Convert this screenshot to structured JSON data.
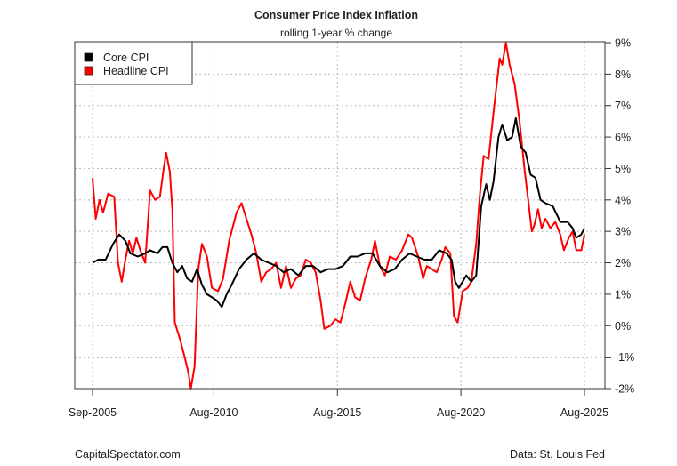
{
  "chart_data": {
    "type": "line",
    "title": "Consumer Price Index Inflation",
    "subtitle": "rolling 1-year % change",
    "xlabel": "",
    "ylabel": "",
    "x_range": [
      2005.67,
      2025.58
    ],
    "ylim": [
      -2,
      9
    ],
    "grid": true,
    "legend_position": "top-left",
    "y_axis_side": "right",
    "y_ticks": [
      -2,
      -1,
      0,
      1,
      2,
      3,
      4,
      5,
      6,
      7,
      8,
      9
    ],
    "y_tick_labels": [
      "-2%",
      "-1%",
      "0%",
      "1%",
      "2%",
      "3%",
      "4%",
      "5%",
      "6%",
      "7%",
      "8%",
      "9%"
    ],
    "x_ticks": [
      2005.67,
      2010.58,
      2015.58,
      2020.58,
      2025.58
    ],
    "x_tick_labels": [
      "Sep-2005",
      "Aug-2010",
      "Aug-2015",
      "Aug-2020",
      "Aug-2025"
    ],
    "series": [
      {
        "name": "Core CPI",
        "color": "#000000",
        "points": [
          [
            2005.67,
            2.0
          ],
          [
            2005.9,
            2.1
          ],
          [
            2006.2,
            2.1
          ],
          [
            2006.5,
            2.6
          ],
          [
            2006.75,
            2.9
          ],
          [
            2007.0,
            2.7
          ],
          [
            2007.2,
            2.3
          ],
          [
            2007.5,
            2.2
          ],
          [
            2007.8,
            2.3
          ],
          [
            2008.0,
            2.4
          ],
          [
            2008.3,
            2.3
          ],
          [
            2008.5,
            2.5
          ],
          [
            2008.7,
            2.5
          ],
          [
            2008.9,
            2.0
          ],
          [
            2009.1,
            1.7
          ],
          [
            2009.3,
            1.9
          ],
          [
            2009.5,
            1.5
          ],
          [
            2009.7,
            1.4
          ],
          [
            2009.9,
            1.8
          ],
          [
            2010.1,
            1.3
          ],
          [
            2010.3,
            1.0
          ],
          [
            2010.5,
            0.9
          ],
          [
            2010.7,
            0.8
          ],
          [
            2010.9,
            0.6
          ],
          [
            2011.1,
            1.0
          ],
          [
            2011.3,
            1.3
          ],
          [
            2011.6,
            1.8
          ],
          [
            2011.9,
            2.1
          ],
          [
            2012.2,
            2.3
          ],
          [
            2012.5,
            2.1
          ],
          [
            2012.8,
            2.0
          ],
          [
            2013.1,
            1.9
          ],
          [
            2013.4,
            1.7
          ],
          [
            2013.7,
            1.8
          ],
          [
            2014.0,
            1.6
          ],
          [
            2014.3,
            1.9
          ],
          [
            2014.6,
            1.9
          ],
          [
            2014.9,
            1.7
          ],
          [
            2015.2,
            1.8
          ],
          [
            2015.5,
            1.8
          ],
          [
            2015.8,
            1.9
          ],
          [
            2016.1,
            2.2
          ],
          [
            2016.4,
            2.2
          ],
          [
            2016.7,
            2.3
          ],
          [
            2017.0,
            2.3
          ],
          [
            2017.3,
            1.9
          ],
          [
            2017.6,
            1.7
          ],
          [
            2017.9,
            1.8
          ],
          [
            2018.2,
            2.1
          ],
          [
            2018.5,
            2.3
          ],
          [
            2018.8,
            2.2
          ],
          [
            2019.1,
            2.1
          ],
          [
            2019.4,
            2.1
          ],
          [
            2019.7,
            2.4
          ],
          [
            2020.0,
            2.3
          ],
          [
            2020.2,
            2.1
          ],
          [
            2020.35,
            1.4
          ],
          [
            2020.5,
            1.2
          ],
          [
            2020.8,
            1.6
          ],
          [
            2021.0,
            1.4
          ],
          [
            2021.2,
            1.6
          ],
          [
            2021.4,
            3.8
          ],
          [
            2021.6,
            4.5
          ],
          [
            2021.75,
            4.0
          ],
          [
            2021.9,
            4.6
          ],
          [
            2022.1,
            6.0
          ],
          [
            2022.25,
            6.4
          ],
          [
            2022.45,
            5.9
          ],
          [
            2022.65,
            6.0
          ],
          [
            2022.8,
            6.6
          ],
          [
            2023.0,
            5.7
          ],
          [
            2023.2,
            5.5
          ],
          [
            2023.4,
            4.8
          ],
          [
            2023.6,
            4.7
          ],
          [
            2023.8,
            4.0
          ],
          [
            2024.0,
            3.9
          ],
          [
            2024.3,
            3.8
          ],
          [
            2024.6,
            3.3
          ],
          [
            2024.9,
            3.3
          ],
          [
            2025.1,
            3.1
          ],
          [
            2025.25,
            2.8
          ],
          [
            2025.45,
            2.9
          ],
          [
            2025.58,
            3.1
          ]
        ]
      },
      {
        "name": "Headline CPI",
        "color": "#ff0000",
        "points": [
          [
            2005.67,
            4.7
          ],
          [
            2005.8,
            3.4
          ],
          [
            2005.95,
            4.0
          ],
          [
            2006.1,
            3.6
          ],
          [
            2006.3,
            4.2
          ],
          [
            2006.55,
            4.1
          ],
          [
            2006.7,
            2.0
          ],
          [
            2006.85,
            1.4
          ],
          [
            2007.0,
            2.1
          ],
          [
            2007.15,
            2.7
          ],
          [
            2007.3,
            2.3
          ],
          [
            2007.45,
            2.8
          ],
          [
            2007.6,
            2.4
          ],
          [
            2007.8,
            2.0
          ],
          [
            2008.0,
            4.3
          ],
          [
            2008.2,
            4.0
          ],
          [
            2008.4,
            4.1
          ],
          [
            2008.55,
            5.0
          ],
          [
            2008.65,
            5.5
          ],
          [
            2008.8,
            4.9
          ],
          [
            2008.9,
            3.7
          ],
          [
            2009.0,
            0.1
          ],
          [
            2009.2,
            -0.4
          ],
          [
            2009.4,
            -1.0
          ],
          [
            2009.55,
            -1.5
          ],
          [
            2009.65,
            -2.0
          ],
          [
            2009.8,
            -1.3
          ],
          [
            2009.95,
            1.8
          ],
          [
            2010.1,
            2.6
          ],
          [
            2010.3,
            2.2
          ],
          [
            2010.5,
            1.2
          ],
          [
            2010.75,
            1.1
          ],
          [
            2010.95,
            1.5
          ],
          [
            2011.2,
            2.7
          ],
          [
            2011.5,
            3.6
          ],
          [
            2011.7,
            3.9
          ],
          [
            2011.9,
            3.4
          ],
          [
            2012.1,
            2.9
          ],
          [
            2012.3,
            2.3
          ],
          [
            2012.5,
            1.4
          ],
          [
            2012.7,
            1.7
          ],
          [
            2012.9,
            1.8
          ],
          [
            2013.1,
            2.0
          ],
          [
            2013.3,
            1.2
          ],
          [
            2013.5,
            1.9
          ],
          [
            2013.7,
            1.2
          ],
          [
            2013.9,
            1.5
          ],
          [
            2014.1,
            1.6
          ],
          [
            2014.3,
            2.1
          ],
          [
            2014.5,
            2.0
          ],
          [
            2014.7,
            1.7
          ],
          [
            2014.9,
            0.8
          ],
          [
            2015.05,
            -0.1
          ],
          [
            2015.3,
            0.0
          ],
          [
            2015.5,
            0.2
          ],
          [
            2015.7,
            0.1
          ],
          [
            2015.9,
            0.7
          ],
          [
            2016.1,
            1.4
          ],
          [
            2016.3,
            0.9
          ],
          [
            2016.5,
            0.8
          ],
          [
            2016.7,
            1.5
          ],
          [
            2016.95,
            2.1
          ],
          [
            2017.1,
            2.7
          ],
          [
            2017.3,
            1.9
          ],
          [
            2017.5,
            1.6
          ],
          [
            2017.7,
            2.2
          ],
          [
            2017.95,
            2.1
          ],
          [
            2018.2,
            2.4
          ],
          [
            2018.45,
            2.9
          ],
          [
            2018.6,
            2.8
          ],
          [
            2018.85,
            2.2
          ],
          [
            2019.05,
            1.5
          ],
          [
            2019.2,
            1.9
          ],
          [
            2019.4,
            1.8
          ],
          [
            2019.6,
            1.7
          ],
          [
            2019.8,
            2.1
          ],
          [
            2019.95,
            2.5
          ],
          [
            2020.15,
            2.3
          ],
          [
            2020.3,
            0.3
          ],
          [
            2020.45,
            0.1
          ],
          [
            2020.65,
            1.1
          ],
          [
            2020.85,
            1.2
          ],
          [
            2021.0,
            1.4
          ],
          [
            2021.2,
            2.6
          ],
          [
            2021.35,
            4.2
          ],
          [
            2021.5,
            5.4
          ],
          [
            2021.7,
            5.3
          ],
          [
            2021.9,
            6.8
          ],
          [
            2022.0,
            7.5
          ],
          [
            2022.15,
            8.5
          ],
          [
            2022.25,
            8.3
          ],
          [
            2022.4,
            9.0
          ],
          [
            2022.55,
            8.3
          ],
          [
            2022.75,
            7.7
          ],
          [
            2022.95,
            6.5
          ],
          [
            2023.15,
            5.0
          ],
          [
            2023.3,
            4.0
          ],
          [
            2023.45,
            3.0
          ],
          [
            2023.55,
            3.2
          ],
          [
            2023.7,
            3.7
          ],
          [
            2023.85,
            3.1
          ],
          [
            2024.0,
            3.4
          ],
          [
            2024.2,
            3.1
          ],
          [
            2024.4,
            3.3
          ],
          [
            2024.6,
            2.9
          ],
          [
            2024.75,
            2.4
          ],
          [
            2024.95,
            2.8
          ],
          [
            2025.1,
            3.0
          ],
          [
            2025.25,
            2.4
          ],
          [
            2025.45,
            2.4
          ],
          [
            2025.58,
            2.9
          ]
        ]
      }
    ]
  },
  "footer": {
    "left": "CapitalSpectator.com",
    "right": "Data: St. Louis Fed"
  }
}
